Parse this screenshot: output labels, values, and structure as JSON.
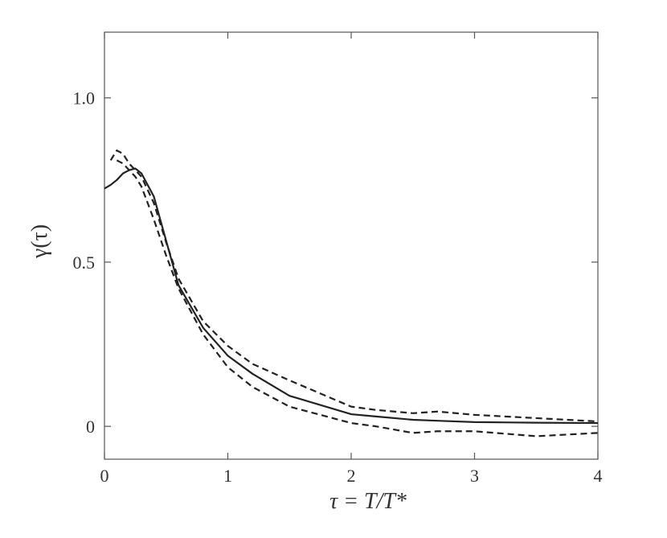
{
  "chart_data": {
    "type": "line",
    "x_label": "τ = T/T*",
    "y_label": "γ(τ)",
    "x": [
      0,
      0.05,
      0.1,
      0.15,
      0.2,
      0.25,
      0.3,
      0.4,
      0.5,
      0.6,
      0.8,
      1.0,
      1.2,
      1.5,
      2.0,
      2.2,
      2.5,
      2.7,
      3.0,
      3.5,
      4.0
    ],
    "series": [
      {
        "color": "#222222",
        "linestyle": "solid",
        "values": [
          0.724,
          0.735,
          0.75,
          0.77,
          0.78,
          0.785,
          0.77,
          0.7,
          0.565,
          0.43,
          0.3,
          0.215,
          0.16,
          0.093,
          0.037,
          0.03,
          0.02,
          0.017,
          0.013,
          0.011,
          0.01
        ]
      },
      {
        "color": "#222222",
        "linestyle": "dashed",
        "values": [
          null,
          0.81,
          0.84,
          0.83,
          0.8,
          0.78,
          0.76,
          0.68,
          0.56,
          0.45,
          0.32,
          0.245,
          0.19,
          0.14,
          0.06,
          0.05,
          0.04,
          0.045,
          0.035,
          0.025,
          0.015
        ]
      },
      {
        "color": "#222222",
        "linestyle": "dashed",
        "values": [
          null,
          null,
          0.81,
          0.8,
          0.78,
          0.76,
          0.73,
          0.63,
          0.52,
          0.42,
          0.28,
          0.18,
          0.12,
          0.06,
          0.01,
          0.0,
          -0.02,
          -0.015,
          -0.015,
          -0.03,
          -0.02
        ]
      }
    ],
    "xlim": [
      0,
      4
    ],
    "ylim": [
      -0.1,
      1.2
    ],
    "xticks": [
      0,
      1,
      2,
      3,
      4
    ],
    "yticks": [
      0,
      0.5,
      {
        "value": 1,
        "label": "1.0"
      }
    ],
    "grid": false
  }
}
